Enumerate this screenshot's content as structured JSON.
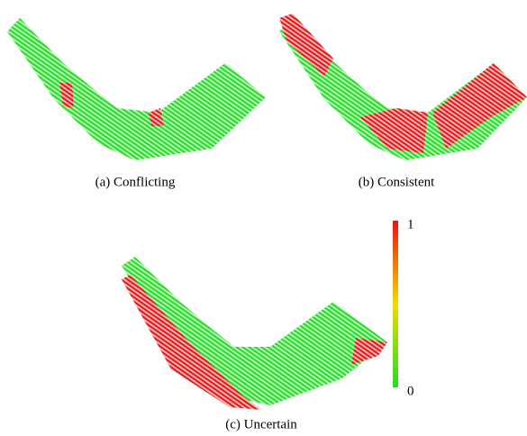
{
  "panels": [
    {
      "caption": "(a) Conflicting"
    },
    {
      "caption": "(b) Consistent"
    },
    {
      "caption": "(c) Uncertain"
    }
  ],
  "colorbar": {
    "max": "1",
    "min": "0"
  }
}
